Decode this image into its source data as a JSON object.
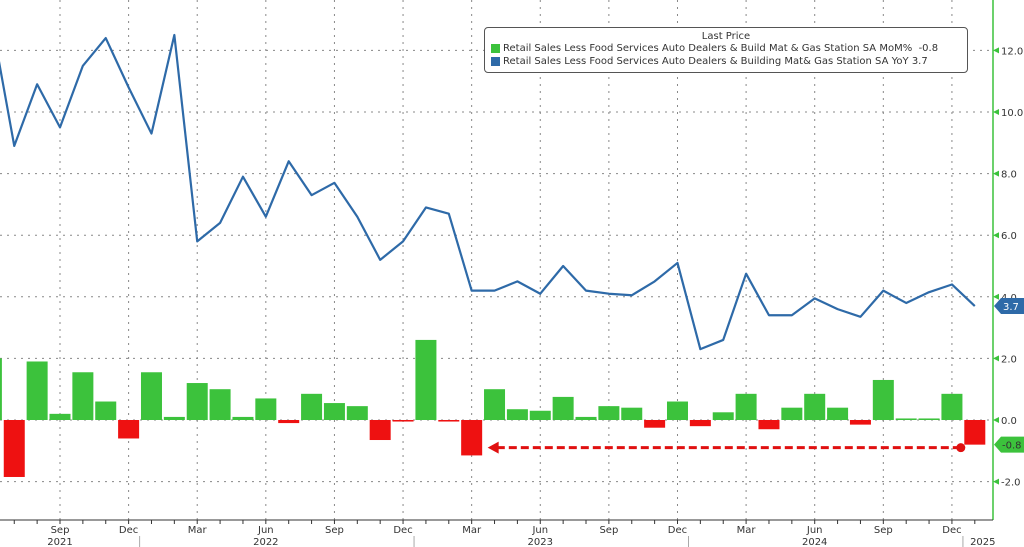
{
  "chart_data": {
    "type": "bar+line",
    "legend": {
      "title": "Last Price",
      "placement": "top-right",
      "entries": [
        {
          "label": "Retail Sales Less Food Services Auto Dealers & Build Mat & Gas Station SA MoM%",
          "last": "-0.8",
          "color": "#3cc23c"
        },
        {
          "label": "Retail Sales Less Food Services Auto Dealers & Building Mat& Gas Station SA YoY",
          "last": "3.7",
          "color": "#2e6aa8"
        }
      ]
    },
    "months": [
      "Jun 2021",
      "Jul 2021",
      "Aug 2021",
      "Sep 2021",
      "Oct 2021",
      "Nov 2021",
      "Dec 2021",
      "Jan 2022",
      "Feb 2022",
      "Mar 2022",
      "Apr 2022",
      "May 2022",
      "Jun 2022",
      "Jul 2022",
      "Aug 2022",
      "Sep 2022",
      "Oct 2022",
      "Nov 2022",
      "Dec 2022",
      "Jan 2023",
      "Feb 2023",
      "Mar 2023",
      "Apr 2023",
      "May 2023",
      "Jun 2023",
      "Jul 2023",
      "Aug 2023",
      "Sep 2023",
      "Oct 2023",
      "Nov 2023",
      "Dec 2023",
      "Jan 2024",
      "Feb 2024",
      "Mar 2024",
      "Apr 2024",
      "May 2024",
      "Jun 2024",
      "Jul 2024",
      "Aug 2024",
      "Sep 2024",
      "Oct 2024",
      "Nov 2024",
      "Dec 2024",
      "Jan 2025"
    ],
    "series": [
      {
        "type": "bar",
        "values": [
          2.0,
          -1.85,
          1.9,
          0.2,
          1.55,
          0.6,
          -0.6,
          1.55,
          0.1,
          1.2,
          1.0,
          0.1,
          0.7,
          -0.1,
          0.85,
          0.55,
          0.45,
          -0.65,
          -0.05,
          2.6,
          -0.05,
          -1.15,
          1.0,
          0.35,
          0.3,
          0.75,
          0.1,
          0.45,
          0.4,
          -0.25,
          0.6,
          -0.2,
          0.25,
          0.85,
          -0.3,
          0.4,
          0.85,
          0.4,
          -0.15,
          1.3,
          0.05,
          0.05,
          0.85,
          -0.8
        ]
      },
      {
        "type": "line",
        "values": [
          13.0,
          8.9,
          10.9,
          9.5,
          11.5,
          12.4,
          10.8,
          9.3,
          12.5,
          5.8,
          6.4,
          7.9,
          6.6,
          8.4,
          7.3,
          7.7,
          6.6,
          5.2,
          5.8,
          6.9,
          6.7,
          4.2,
          4.2,
          4.5,
          4.1,
          5.0,
          4.2,
          4.1,
          4.05,
          4.5,
          5.1,
          2.3,
          2.6,
          4.75,
          3.4,
          3.4,
          3.95,
          3.6,
          3.35,
          4.2,
          3.8,
          4.15,
          4.4,
          3.7
        ]
      }
    ],
    "ylim": [
      -3.3,
      13.6
    ],
    "yticks": [
      "12.0",
      "10.0",
      "8.0",
      "6.0",
      "4.0",
      "2.0",
      "0.0",
      "-2.0"
    ],
    "ytick_values": [
      12,
      10,
      8,
      6,
      4,
      2,
      0,
      -2
    ],
    "xticks": [
      {
        "month": "Sep 2021",
        "label": "Sep"
      },
      {
        "month": "Dec 2021",
        "label": "Dec"
      },
      {
        "month": "Mar 2022",
        "label": "Mar"
      },
      {
        "month": "Jun 2022",
        "label": "Jun"
      },
      {
        "month": "Sep 2022",
        "label": "Sep"
      },
      {
        "month": "Dec 2022",
        "label": "Dec"
      },
      {
        "month": "Mar 2023",
        "label": "Mar"
      },
      {
        "month": "Jun 2023",
        "label": "Jun"
      },
      {
        "month": "Sep 2023",
        "label": "Sep"
      },
      {
        "month": "Dec 2023",
        "label": "Dec"
      },
      {
        "month": "Mar 2024",
        "label": "Mar"
      },
      {
        "month": "Jun 2024",
        "label": "Jun"
      },
      {
        "month": "Sep 2024",
        "label": "Sep"
      },
      {
        "month": "Dec 2024",
        "label": "Dec"
      }
    ],
    "years": [
      {
        "month": "Sep 2021",
        "label": "2021"
      },
      {
        "month": "Jun 2022",
        "label": "2022"
      },
      {
        "month": "Jun 2023",
        "label": "2023"
      },
      {
        "month": "Jun 2024",
        "label": "2024"
      },
      {
        "month": "Jan 2025",
        "label": "2025"
      }
    ],
    "last_value_labels": {
      "line": "3.7",
      "bar": "-0.8"
    },
    "annotation": {
      "type": "dashed-arrow",
      "from": "Jan 2025",
      "to": "Mar 2023",
      "value": -0.8,
      "color": "#e01010"
    },
    "colors": {
      "positive_bar": "#3cc23c",
      "negative_bar": "#ee1111",
      "line": "#2e6aa8",
      "axis": "#3cc23c"
    },
    "grid": true
  }
}
